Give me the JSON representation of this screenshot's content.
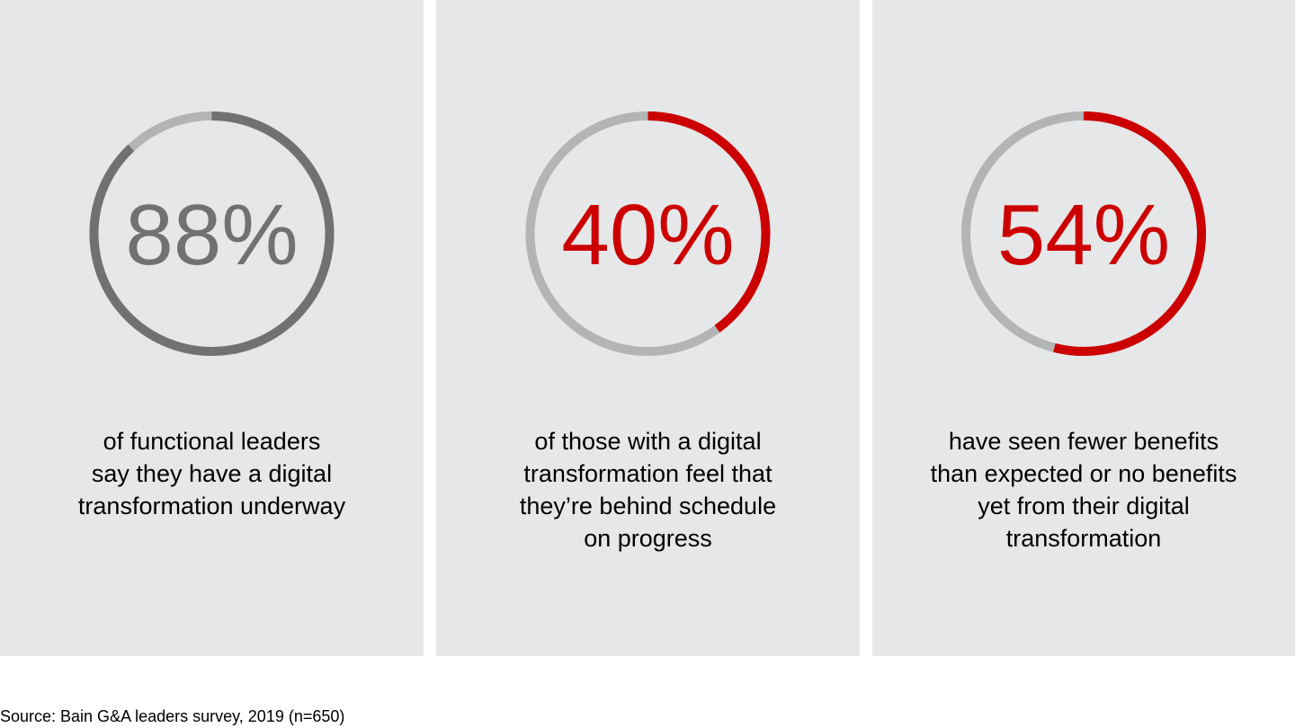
{
  "chart_data": {
    "type": "donut",
    "stats": [
      {
        "value": 88,
        "label": "88%",
        "caption": [
          "of functional leaders",
          "say they have a digital",
          "transformation underway"
        ],
        "color": "#717174"
      },
      {
        "value": 40,
        "label": "40%",
        "caption": [
          "of those with a digital",
          "transformation feel that",
          "they’re behind schedule",
          "on progress"
        ],
        "color": "#cc0000"
      },
      {
        "value": 54,
        "label": "54%",
        "caption": [
          "have seen fewer benefits",
          "than expected or no benefits",
          "yet from their digital",
          "transformation"
        ],
        "color": "#cc0000"
      }
    ],
    "track_color": "#b4b4b6",
    "panel_color": "#e6e7e8"
  },
  "footer": {
    "source": "Source: Bain G&A leaders survey, 2019 (n=650)"
  }
}
